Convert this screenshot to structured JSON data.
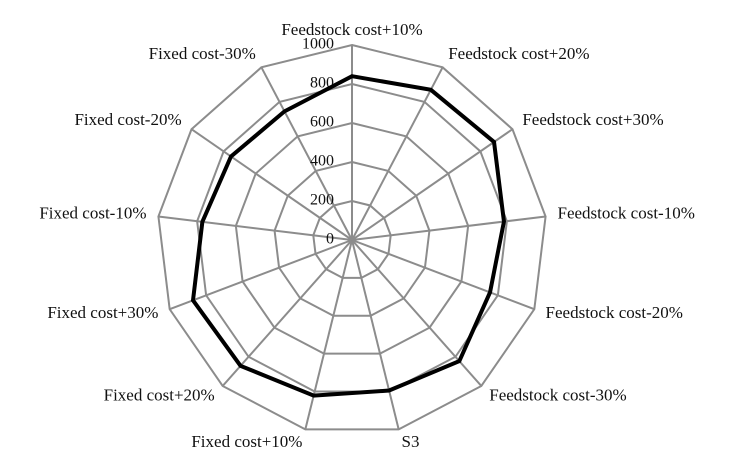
{
  "chart_data": {
    "type": "radar",
    "categories": [
      "Feedstock cost+10%",
      "Feedstock cost+20%",
      "Feedstock cost+30%",
      "Feedstock cost-10%",
      "Feedstock cost-20%",
      "Feedstock cost-30%",
      "S3",
      "Fixed cost+10%",
      "Fixed cost+20%",
      "Fixed cost+30%",
      "Fixed cost-10%",
      "Fixed cost-20%",
      "Fixed cost-30%"
    ],
    "values": [
      840,
      870,
      885,
      785,
      757,
      830,
      795,
      822,
      862,
      872,
      773,
      754,
      745
    ],
    "color": "#000000",
    "ylim": [
      0,
      1000
    ],
    "yticks": [
      0,
      200,
      400,
      600,
      800,
      1000
    ],
    "grid": true
  }
}
